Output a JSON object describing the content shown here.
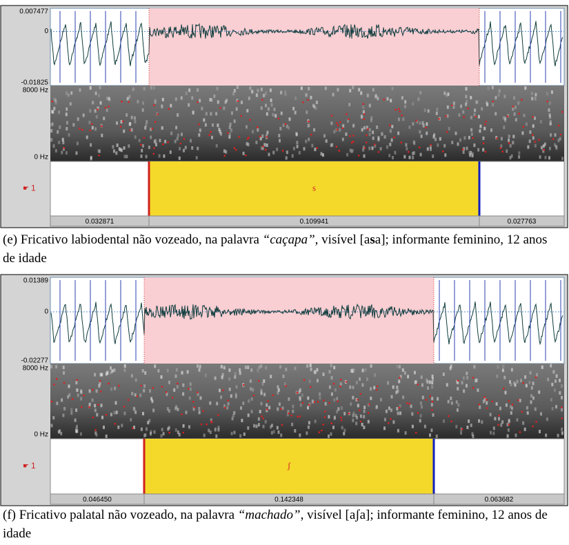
{
  "panels": [
    {
      "y_max": "0.007477",
      "y_zero": "0",
      "y_min": "-0.01825",
      "freq_top": "8000 Hz",
      "freq_bottom": "0 Hz",
      "tier_label": "1",
      "interval_label": "s",
      "durations": [
        "0.032871",
        "0.109941",
        "0.027763"
      ],
      "caption": [
        "(e) Fricativo labiodental não vozeado, na palavra ",
        "“caçapa”",
        ", visível [a",
        "s",
        "a]; informante feminino, 12 anos de idade"
      ]
    },
    {
      "y_max": "0.01389",
      "y_zero": "0",
      "y_min": "-0.02277",
      "freq_top": "8000 Hz",
      "freq_bottom": "0 Hz",
      "tier_label": "1",
      "interval_label": "ʃ",
      "durations": [
        "0.046450",
        "0.142348",
        "0.063682"
      ],
      "caption": [
        "(f) Fricativo palatal não vozeado, na palavra ",
        "“machado”",
        ", visível [a",
        "ʃ",
        "a]; informante feminino, 12 anos de idade"
      ]
    }
  ]
}
